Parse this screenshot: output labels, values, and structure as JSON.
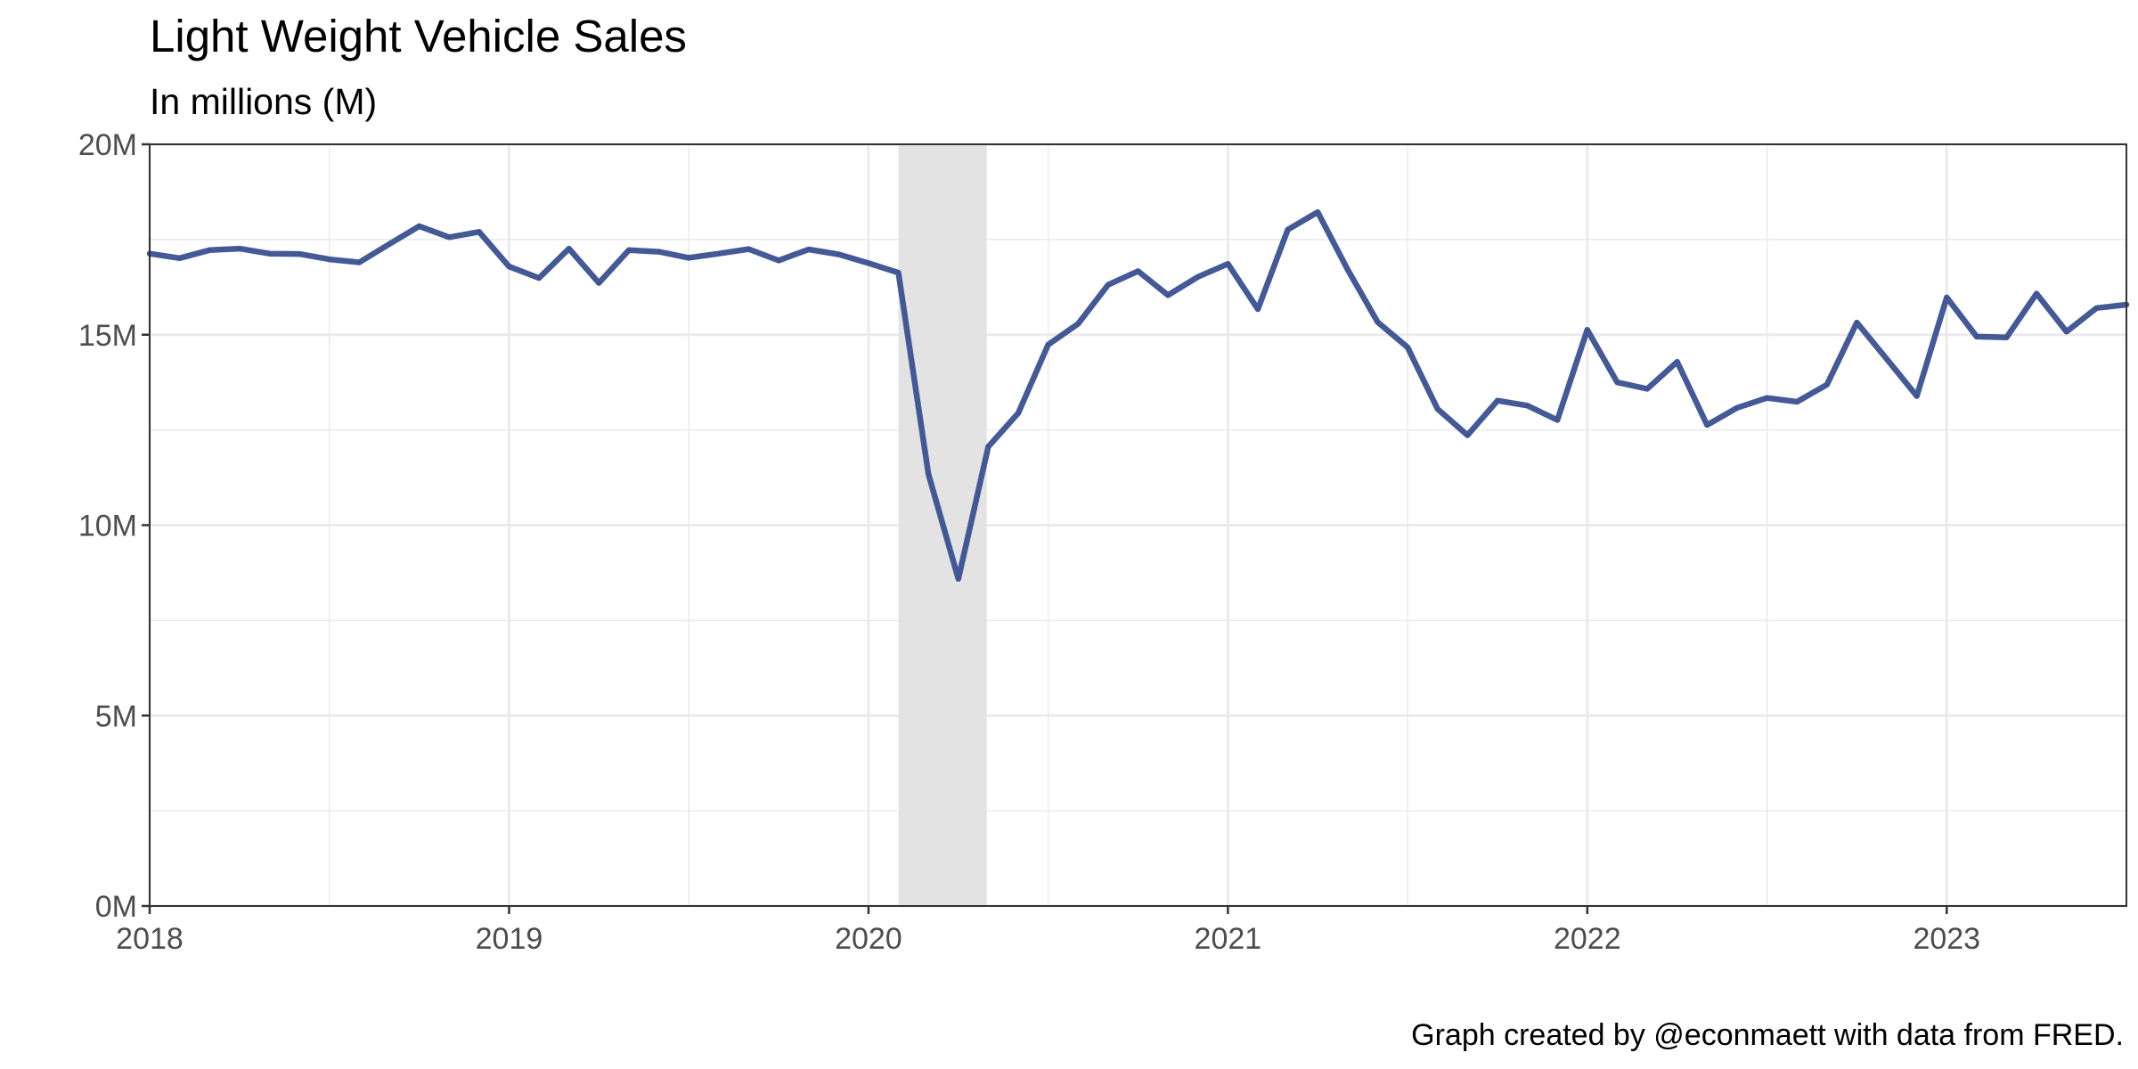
{
  "chart_data": {
    "type": "line",
    "title": "Light Weight Vehicle Sales",
    "subtitle": "In millions (M)",
    "caption": "Graph created by @econmaett with data from FRED.",
    "xlabel": "",
    "ylabel": "",
    "xlim": [
      "2018-01-01",
      "2023-07-01"
    ],
    "ylim": [
      0,
      20
    ],
    "y_ticks": [
      0,
      5,
      10,
      15,
      20
    ],
    "y_tick_labels": [
      "0M",
      "5M",
      "10M",
      "15M",
      "20M"
    ],
    "x_ticks": [
      "2018-01-01",
      "2019-01-01",
      "2020-01-01",
      "2021-01-01",
      "2022-01-01",
      "2023-01-01"
    ],
    "x_tick_labels": [
      "2018",
      "2019",
      "2020",
      "2021",
      "2022",
      "2023"
    ],
    "grid": true,
    "legend": "none",
    "recession_shading": {
      "start": "2020-02-01",
      "end": "2020-04-30",
      "color": "#e3e3e3"
    },
    "series": [
      {
        "color": "#3a5191",
        "x": [
          "2018-01",
          "2018-02",
          "2018-03",
          "2018-04",
          "2018-05",
          "2018-06",
          "2018-07",
          "2018-08",
          "2018-09",
          "2018-10",
          "2018-11",
          "2018-12",
          "2019-01",
          "2019-02",
          "2019-03",
          "2019-04",
          "2019-05",
          "2019-06",
          "2019-07",
          "2019-08",
          "2019-09",
          "2019-10",
          "2019-11",
          "2019-12",
          "2020-01",
          "2020-02",
          "2020-03",
          "2020-04",
          "2020-05",
          "2020-06",
          "2020-07",
          "2020-08",
          "2020-09",
          "2020-10",
          "2020-11",
          "2020-12",
          "2021-01",
          "2021-02",
          "2021-03",
          "2021-04",
          "2021-05",
          "2021-06",
          "2021-07",
          "2021-08",
          "2021-09",
          "2021-10",
          "2021-11",
          "2021-12",
          "2022-01",
          "2022-02",
          "2022-03",
          "2022-04",
          "2022-05",
          "2022-06",
          "2022-07",
          "2022-08",
          "2022-09",
          "2022-10",
          "2022-11",
          "2022-12",
          "2023-01",
          "2023-02",
          "2023-03",
          "2023-04",
          "2023-05",
          "2023-06",
          "2023-07"
        ],
        "values": [
          17.13,
          17.01,
          17.22,
          17.26,
          17.13,
          17.12,
          16.98,
          16.9,
          17.38,
          17.85,
          17.56,
          17.7,
          16.79,
          16.49,
          17.26,
          16.36,
          17.22,
          17.18,
          17.02,
          17.13,
          17.25,
          16.95,
          17.24,
          17.11,
          16.88,
          16.63,
          11.34,
          8.59,
          12.06,
          12.94,
          14.74,
          15.29,
          16.31,
          16.67,
          16.04,
          16.52,
          16.86,
          15.67,
          17.76,
          18.22,
          16.71,
          15.33,
          14.67,
          13.05,
          12.36,
          13.27,
          13.14,
          12.76,
          15.13,
          13.75,
          13.58,
          14.29,
          12.63,
          13.08,
          13.34,
          13.24,
          13.69,
          15.32,
          14.36,
          13.39,
          15.98,
          14.95,
          14.93,
          16.08,
          15.08,
          15.7,
          15.79
        ]
      }
    ]
  }
}
